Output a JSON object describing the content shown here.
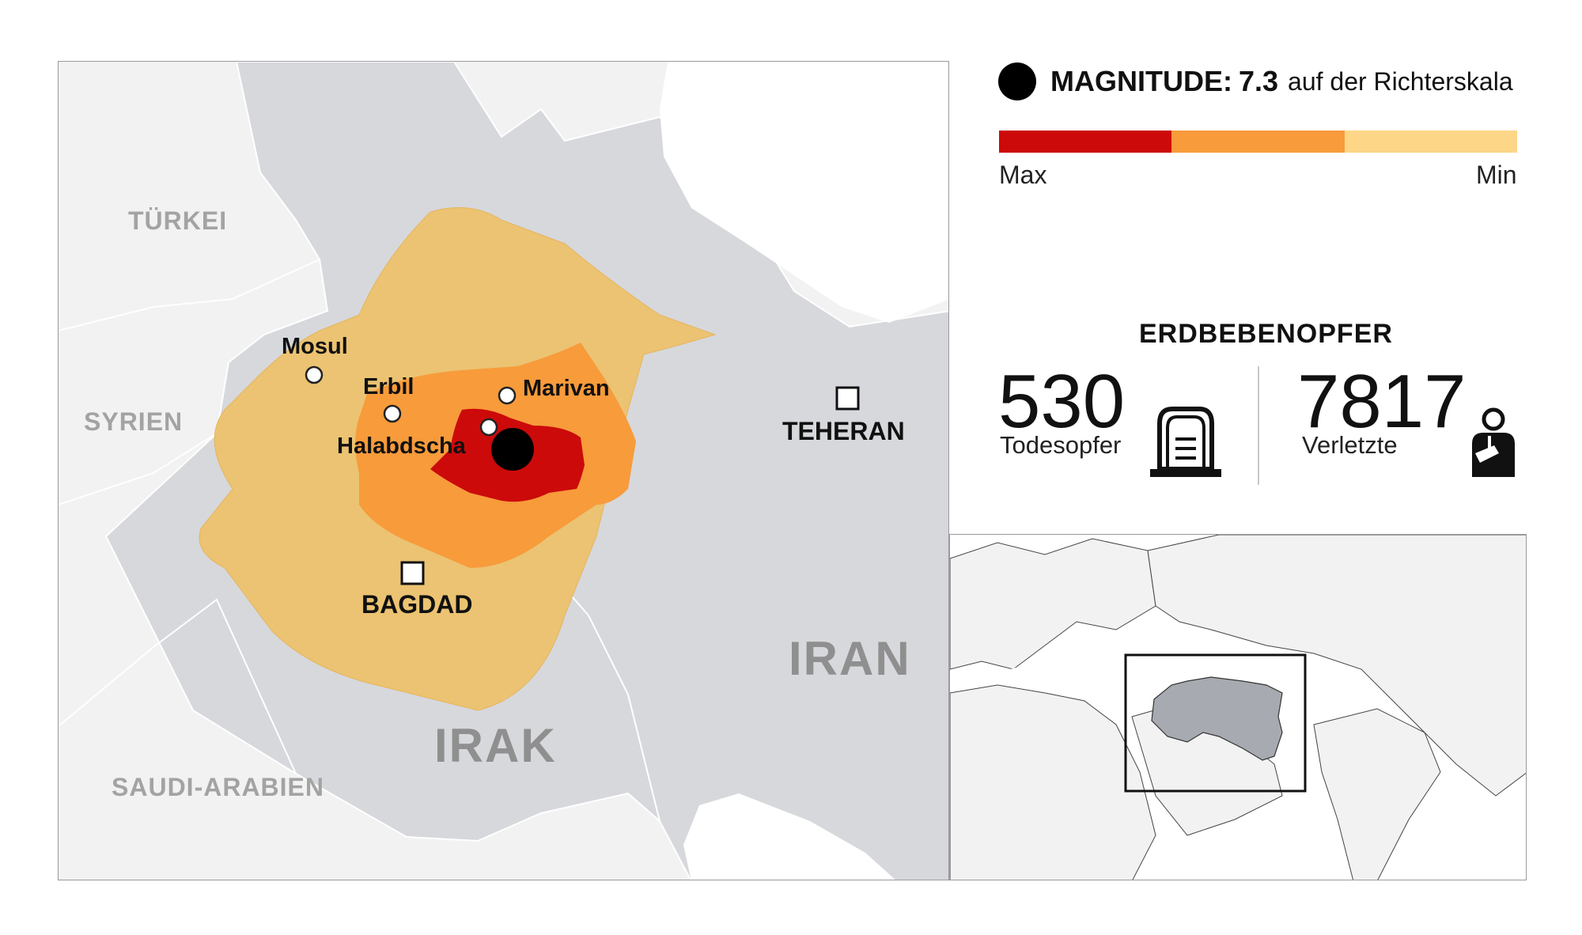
{
  "main_map": {
    "countries": {
      "turkey": "TÜRKEI",
      "syria": "SYRIEN",
      "saudi_arabia": "SAUDI-ARABIEN",
      "iraq": "IRAK",
      "iran": "IRAN"
    },
    "cities": {
      "mosul": "Mosul",
      "erbil": "Erbil",
      "marivan": "Marivan",
      "halabja": "Halabdscha"
    },
    "capitals": {
      "tehran": "TEHERAN",
      "baghdad": "BAGDAD"
    },
    "intensity_colors": {
      "max": "#cc0a0a",
      "mid": "#f79b3b",
      "min": "#ebc372"
    }
  },
  "legend": {
    "magnitude_label": "MAGNITUDE:",
    "magnitude_value": "7.3",
    "magnitude_unit": "auf der Richterskala",
    "scale_colors": [
      "#cc0a0a",
      "#f79b3b",
      "#fdd688"
    ],
    "scale_max": "Max",
    "scale_min": "Min"
  },
  "victims": {
    "title": "ERDBEBENOPFER",
    "deaths_value": "530",
    "deaths_label": "Todesopfer",
    "deaths_icon": "gravestone-icon",
    "injured_value": "7817",
    "injured_label": "Verletzte",
    "injured_icon": "injured-person-icon"
  },
  "inset_map": {
    "highlighted_countries": [
      "Irak",
      "Iran"
    ],
    "highlight_color": "#a7aab0"
  }
}
